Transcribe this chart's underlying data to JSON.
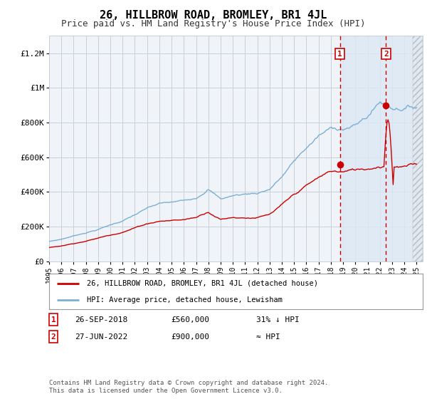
{
  "title": "26, HILLBROW ROAD, BROMLEY, BR1 4JL",
  "subtitle": "Price paid vs. HM Land Registry's House Price Index (HPI)",
  "title_fontsize": 11,
  "subtitle_fontsize": 9,
  "background_color": "#ffffff",
  "plot_bg_color": "#f0f4f8",
  "grid_color": "#c8d0d8",
  "red_line_color": "#cc0000",
  "blue_line_color": "#7bafd4",
  "highlight_bg_color": "#dce8f5",
  "dashed_line_color": "#cc0000",
  "ylim": [
    0,
    1300000
  ],
  "yticks": [
    0,
    200000,
    400000,
    600000,
    800000,
    1000000,
    1200000
  ],
  "ytick_labels": [
    "£0",
    "£200K",
    "£400K",
    "£600K",
    "£800K",
    "£1M",
    "£1.2M"
  ],
  "xlim_start": 1995,
  "xlim_end": 2025.5,
  "sale1_year": 2018.74,
  "sale1_price": 560000,
  "sale2_year": 2022.5,
  "sale2_price": 900000,
  "legend_line1": "26, HILLBROW ROAD, BROMLEY, BR1 4JL (detached house)",
  "legend_line2": "HPI: Average price, detached house, Lewisham",
  "table_row1_num": "1",
  "table_row1_date": "26-SEP-2018",
  "table_row1_price": "£560,000",
  "table_row1_hpi": "31% ↓ HPI",
  "table_row2_num": "2",
  "table_row2_date": "27-JUN-2022",
  "table_row2_price": "£900,000",
  "table_row2_hpi": "≈ HPI",
  "footer": "Contains HM Land Registry data © Crown copyright and database right 2024.\nThis data is licensed under the Open Government Licence v3.0.",
  "xticks": [
    1995,
    1996,
    1997,
    1998,
    1999,
    2000,
    2001,
    2002,
    2003,
    2004,
    2005,
    2006,
    2007,
    2008,
    2009,
    2010,
    2011,
    2012,
    2013,
    2014,
    2015,
    2016,
    2017,
    2018,
    2019,
    2020,
    2021,
    2022,
    2023,
    2024,
    2025
  ]
}
